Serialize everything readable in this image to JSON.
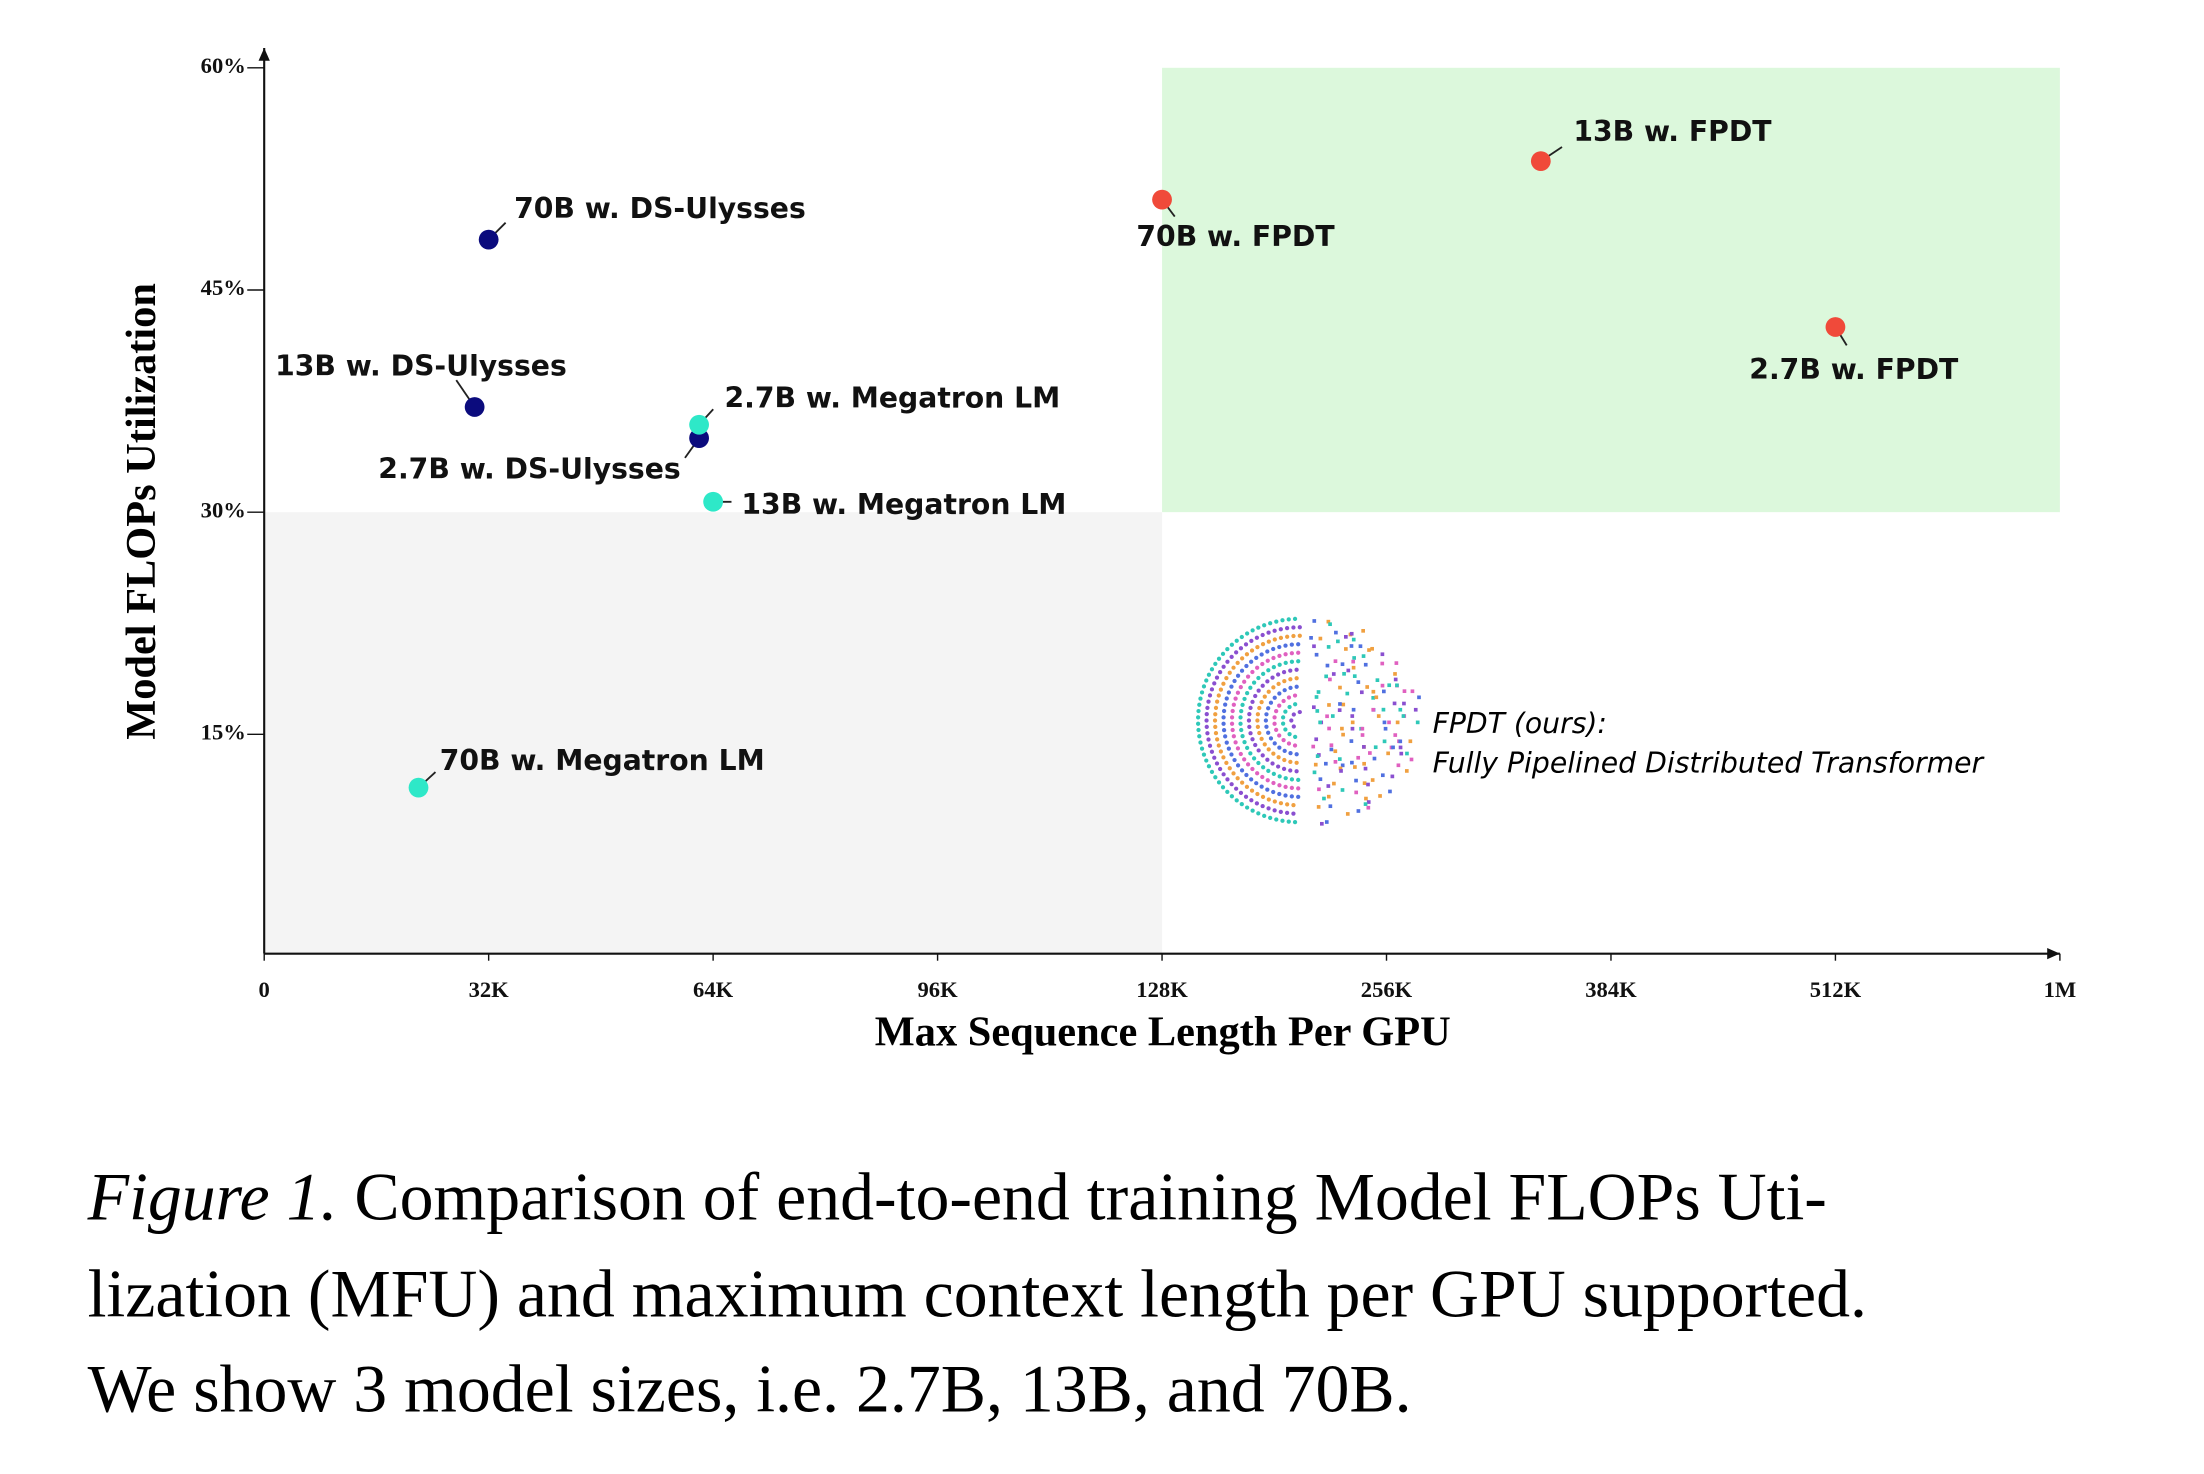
{
  "chart_data": {
    "type": "scatter",
    "x_label": "Max Sequence Length Per GPU",
    "y_label": "Model FLOPs Utilization",
    "xlim": [
      0,
      1024
    ],
    "xticks": [
      0,
      {
        "value": 32,
        "label": "32K"
      },
      {
        "value": 64,
        "label": "64K"
      },
      {
        "value": 96,
        "label": "96K"
      },
      {
        "value": 128,
        "label": "128K"
      },
      {
        "value": 256,
        "label": "256K"
      },
      {
        "value": 384,
        "label": "384K"
      },
      {
        "value": 512,
        "label": "512K"
      },
      {
        "value": 1024,
        "label": "1M"
      }
    ],
    "ylim": [
      0,
      60
    ],
    "yticks": [
      {
        "value": 15,
        "label": "15%"
      },
      {
        "value": 30,
        "label": "30%"
      },
      {
        "value": 45,
        "label": "45%"
      },
      {
        "value": 60,
        "label": "60%"
      }
    ],
    "regions": [
      {
        "xlim": [
          0,
          128
        ],
        "ylim": [
          0,
          30
        ],
        "color": "#f4f4f4"
      },
      {
        "xlim": [
          128,
          1024
        ],
        "ylim": [
          30,
          60
        ],
        "color": "#dcf8dc"
      }
    ],
    "points": [
      {
        "label": "70B w. DS-Ulysses",
        "x": 32,
        "y": 48.4,
        "color": "#0b0b7d"
      },
      {
        "label": "13B w. DS-Ulysses",
        "x": 30,
        "y": 37.1,
        "color": "#0b0b7d"
      },
      {
        "label": "2.7B w. DS-Ulysses",
        "x": 62,
        "y": 35.0,
        "color": "#0b0b7d"
      },
      {
        "label": "2.7B w. Megatron LM",
        "x": 62,
        "y": 35.9,
        "color": "#2ee8c8"
      },
      {
        "label": "13B w. Megatron LM",
        "x": 64,
        "y": 30.7,
        "color": "#2ee8c8"
      },
      {
        "label": "70B w. Megatron LM",
        "x": 22,
        "y": 11.4,
        "color": "#2ee8c8"
      },
      {
        "label": "70B w. FPDT",
        "x": 128,
        "y": 51.1,
        "color": "#f04a3a"
      },
      {
        "label": "13B w. FPDT",
        "x": 344,
        "y": 53.7,
        "color": "#f04a3a"
      },
      {
        "label": "2.7B w. FPDT",
        "x": 512,
        "y": 42.5,
        "color": "#f04a3a"
      }
    ],
    "annotation": [
      "FPDT (ours):",
      "Fully Pipelined Distributed Transformer"
    ]
  },
  "caption": {
    "lead": "Figure 1.",
    "lines": [
      "Comparison of end-to-end training Model FLOPs Uti-",
      "lization (MFU) and maximum context length per GPU supported.",
      "We show 3 model sizes, i.e. 2.7B, 13B, and 70B."
    ]
  }
}
